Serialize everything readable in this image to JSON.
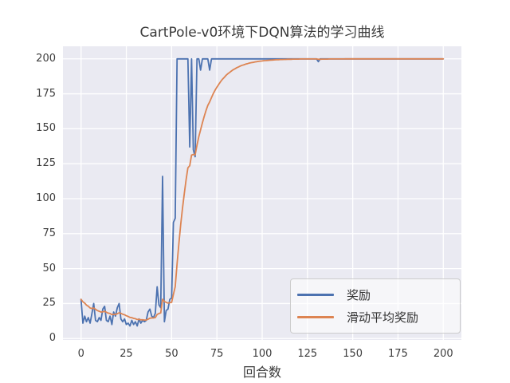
{
  "figure": {
    "title": "CartPole-v0环境下DQN算法的学习曲线",
    "xlabel": "回合数",
    "background": "#ffffff",
    "plot_background": "#eaeaf2",
    "grid_color": "#ffffff",
    "tick_color": "#3d3d3d"
  },
  "legend": {
    "items": [
      {
        "label": "奖励",
        "color": "#4c72b0"
      },
      {
        "label": "滑动平均奖励",
        "color": "#dd8452"
      }
    ]
  },
  "chart_data": {
    "type": "line",
    "title": "CartPole-v0环境下DQN算法的学习曲线",
    "xlabel": "回合数",
    "ylabel": "",
    "xlim": [
      -10,
      210
    ],
    "ylim": [
      -1,
      209
    ],
    "xticks": [
      0,
      25,
      50,
      75,
      100,
      125,
      150,
      175,
      200
    ],
    "yticks": [
      0,
      25,
      50,
      75,
      100,
      125,
      150,
      175,
      200
    ],
    "grid": true,
    "legend_position": "lower right",
    "series": [
      {
        "name": "奖励",
        "color": "#4c72b0",
        "x_start": 0,
        "x_step": 1,
        "values": [
          28,
          11,
          16,
          12,
          15,
          11,
          18,
          25,
          13,
          12,
          15,
          13,
          21,
          23,
          13,
          12,
          16,
          10,
          19,
          16,
          22,
          25,
          14,
          12,
          14,
          10,
          11,
          9,
          13,
          10,
          12,
          9,
          14,
          11,
          13,
          12,
          13,
          19,
          21,
          16,
          15,
          18,
          37,
          24,
          22,
          116,
          12,
          20,
          21,
          28,
          29,
          83,
          86,
          200,
          200,
          200,
          200,
          200,
          200,
          200,
          137,
          200,
          135,
          130,
          200,
          200,
          192,
          200,
          200,
          200,
          200,
          192,
          200,
          200,
          200,
          200,
          200,
          200,
          200,
          200,
          200,
          200,
          200,
          200,
          200,
          200,
          200,
          200,
          200,
          200,
          200,
          200,
          200,
          200,
          200,
          200,
          200,
          200,
          200,
          200,
          200,
          200,
          200,
          200,
          200,
          200,
          200,
          200,
          200,
          200,
          200,
          200,
          200,
          200,
          200,
          200,
          200,
          200,
          200,
          200,
          200,
          200,
          200,
          200,
          200,
          200,
          200,
          200,
          200,
          200,
          200,
          198,
          200,
          200,
          200,
          200,
          200,
          200,
          200,
          200,
          200,
          200,
          200,
          200,
          200,
          200,
          200,
          200,
          200,
          200,
          200,
          200,
          200,
          200,
          200,
          200,
          200,
          200,
          200,
          200,
          200,
          200,
          200,
          200,
          200,
          200,
          200,
          200,
          200,
          200,
          200,
          200,
          200,
          200,
          200,
          200,
          200,
          200,
          200,
          200,
          200,
          200,
          200,
          200,
          200,
          200,
          200,
          200,
          200,
          200,
          200,
          200,
          200,
          200,
          200,
          200,
          200,
          200,
          200,
          200,
          200
        ]
      },
      {
        "name": "滑动平均奖励",
        "color": "#dd8452",
        "x_start": 0,
        "x_step": 1,
        "values": [
          28.0,
          26.3,
          25.3,
          23.9,
          23.1,
          21.8,
          21.5,
          21.8,
          20.9,
          20.0,
          19.5,
          18.9,
          19.1,
          19.5,
          18.8,
          18.2,
          17.9,
          17.1,
          17.3,
          17.2,
          17.7,
          18.4,
          18.0,
          17.4,
          17.0,
          16.3,
          15.8,
          15.1,
          14.9,
          14.4,
          14.2,
          13.6,
          13.7,
          13.4,
          13.4,
          13.2,
          13.2,
          13.8,
          14.5,
          14.7,
          14.7,
          15.0,
          17.2,
          17.9,
          18.3,
          28.1,
          26.5,
          25.8,
          25.3,
          25.6,
          25.9,
          31.6,
          37.1,
          53.4,
          68.0,
          81.2,
          93.1,
          103.8,
          113.4,
          122.1,
          123.6,
          131.2,
          131.6,
          131.4,
          138.3,
          144.4,
          149.2,
          154.3,
          158.9,
          163.0,
          166.7,
          169.2,
          172.3,
          175.1,
          177.6,
          179.8,
          181.8,
          183.6,
          185.3,
          186.7,
          188.1,
          189.3,
          190.3,
          191.3,
          192.2,
          192.9,
          193.7,
          194.3,
          194.9,
          195.4,
          195.8,
          196.3,
          196.6,
          197.0,
          197.3,
          197.5,
          197.8,
          198.0,
          198.2,
          198.4,
          198.5,
          198.7,
          198.8,
          198.9,
          199.0,
          199.1,
          199.2,
          199.3,
          199.4,
          199.4,
          199.5,
          199.5,
          199.6,
          199.6,
          199.7,
          199.7,
          199.7,
          199.8,
          199.8,
          199.8,
          199.8,
          199.9,
          199.9,
          199.9,
          199.9,
          199.9,
          199.9,
          199.9,
          199.9,
          199.9,
          199.9,
          199.7,
          199.7,
          199.8,
          199.8,
          199.8,
          199.8,
          199.9,
          199.9,
          199.9,
          199.9,
          199.9,
          199.9,
          199.9,
          199.9,
          199.9,
          200,
          200,
          200,
          200,
          200,
          200,
          200,
          200,
          200,
          200,
          200,
          200,
          200,
          200,
          200,
          200,
          200,
          200,
          200,
          200,
          200,
          200,
          200,
          200,
          200,
          200,
          200,
          200,
          200,
          200,
          200,
          200,
          200,
          200,
          200,
          200,
          200,
          200,
          200,
          200,
          200,
          200,
          200,
          200,
          200,
          200,
          200,
          200,
          200,
          200,
          200,
          200,
          200,
          200,
          200
        ]
      }
    ]
  }
}
